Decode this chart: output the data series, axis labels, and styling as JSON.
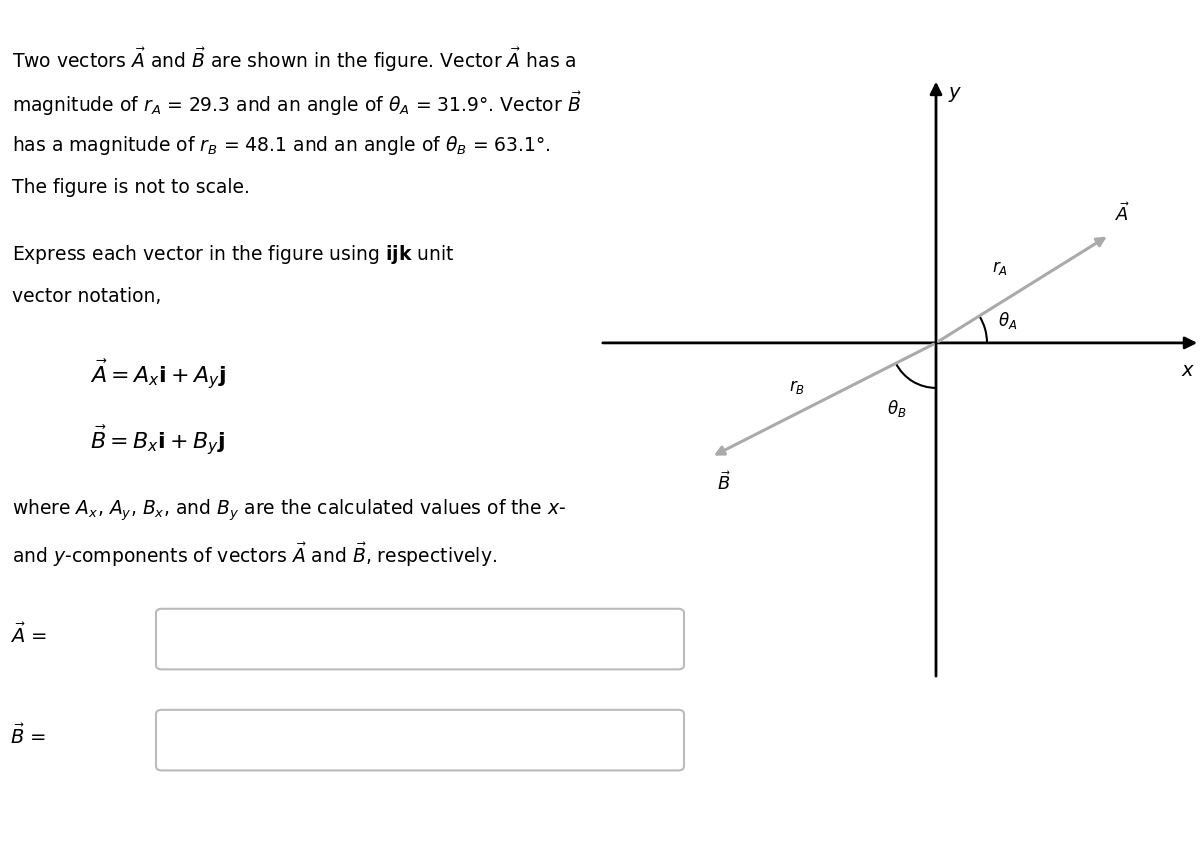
{
  "bg_color": "#ffffff",
  "text_color": "#000000",
  "arrow_color": "#aaaaaa",
  "axis_color": "#000000",
  "rA": 29.3,
  "thetaA_deg": 31.9,
  "rB": 48.1,
  "thetaB_deg": 63.1,
  "font_size_body": 13.5,
  "font_size_eq": 16,
  "font_size_label": 14
}
